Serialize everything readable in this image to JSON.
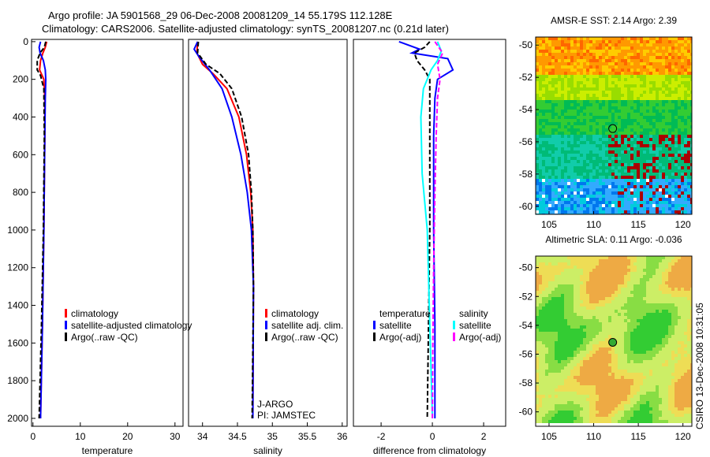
{
  "title_line1": "Argo profile: JA 5901568_29 06-Dec-2008 20081209_14 55.179S 112.128E",
  "title_line2": "Climatology: CARS2006. Satellite-adjusted climatology: synTS_20081207.nc (0.21d later)",
  "side_label": "CSIRO 13-Dec-2008 10:31:05",
  "colors": {
    "clim": "#ff0000",
    "sat": "#0000ff",
    "argo": "#000000",
    "cyan": "#00ffff",
    "magenta": "#ff00ff"
  },
  "chart_data": [
    {
      "type": "line",
      "xlabel": "temperature",
      "xlim": [
        -0.3,
        31.7
      ],
      "ylim": [
        -12,
        2042
      ],
      "xticks": [
        0,
        10,
        20,
        30
      ],
      "yticks": [
        0,
        200,
        400,
        600,
        800,
        1000,
        1200,
        1400,
        1600,
        1800,
        2000
      ],
      "legend": [
        "climatology",
        "satellite-adjusted climatology",
        "Argo(..raw -QC)"
      ],
      "series": [
        {
          "name": "climatology",
          "color": "#ff0000",
          "dash": false,
          "depth": [
            0,
            30,
            60,
            100,
            150,
            200,
            300,
            500,
            1000,
            1500,
            2000
          ],
          "values": [
            2.9,
            2.6,
            2.1,
            1.6,
            1.4,
            2.3,
            2.5,
            2.5,
            2.3,
            2.0,
            1.6
          ]
        },
        {
          "name": "satellite-adjusted climatology",
          "color": "#0000ff",
          "dash": false,
          "depth": [
            0,
            30,
            60,
            100,
            150,
            200,
            300,
            500,
            1000,
            1500,
            2000
          ],
          "values": [
            1.6,
            1.3,
            1.5,
            2.2,
            2.6,
            2.7,
            2.6,
            2.5,
            2.3,
            2.0,
            1.6
          ]
        },
        {
          "name": "Argo",
          "color": "#000000",
          "dash": true,
          "depth": [
            0,
            30,
            60,
            100,
            150,
            180,
            250,
            500,
            1000,
            1500,
            2000
          ],
          "values": [
            2.7,
            2.4,
            1.5,
            0.9,
            0.9,
            1.6,
            2.3,
            2.4,
            2.2,
            1.8,
            1.3
          ]
        }
      ]
    },
    {
      "type": "line",
      "xlabel": "salinity",
      "xlim": [
        33.8,
        36.07
      ],
      "ylim": [
        -12,
        2042
      ],
      "xticks": [
        34,
        34.5,
        35,
        35.5,
        36
      ],
      "yticks": [],
      "legend": [
        "climatology",
        "satellite adj. clim.",
        "Argo(..raw -QC)"
      ],
      "annotation": [
        "J-ARGO",
        "PI: JAMSTEC"
      ],
      "series": [
        {
          "name": "climatology",
          "color": "#ff0000",
          "dash": false,
          "depth": [
            0,
            60,
            120,
            170,
            250,
            400,
            600,
            800,
            1000,
            1300,
            2000
          ],
          "values": [
            33.93,
            33.92,
            34.0,
            34.15,
            34.35,
            34.52,
            34.63,
            34.69,
            34.72,
            34.73,
            34.72
          ]
        },
        {
          "name": "satellite adj. clim.",
          "color": "#0000ff",
          "dash": false,
          "depth": [
            0,
            40,
            80,
            150,
            250,
            400,
            600,
            800,
            1000,
            1300,
            2000
          ],
          "values": [
            33.93,
            33.88,
            33.95,
            34.1,
            34.28,
            34.42,
            34.55,
            34.64,
            34.7,
            34.73,
            34.72
          ]
        },
        {
          "name": "Argo",
          "color": "#000000",
          "dash": true,
          "depth": [
            0,
            60,
            120,
            170,
            250,
            400,
            600,
            800,
            1000,
            1300,
            2000
          ],
          "values": [
            33.94,
            33.93,
            34.05,
            34.25,
            34.42,
            34.56,
            34.66,
            34.7,
            34.72,
            34.73,
            34.71
          ]
        }
      ]
    },
    {
      "type": "line",
      "xlabel": "difference from climatology",
      "xlim": [
        -3.08,
        2.86
      ],
      "ylim": [
        -12,
        2042
      ],
      "xticks": [
        -2,
        0,
        2
      ],
      "yticks": [],
      "legend_temperature": {
        "title": "temperature",
        "items": [
          "satellite",
          "Argo(-adj)"
        ]
      },
      "legend_salinity": {
        "title": "salinity",
        "items": [
          "satellite",
          "Argo(-adj)"
        ]
      },
      "series": [
        {
          "name": "temperature satellite",
          "color": "#0000ff",
          "dash": false,
          "depth": [
            0,
            40,
            60,
            90,
            150,
            200,
            300,
            500,
            1000,
            1500,
            2000
          ],
          "values": [
            -1.3,
            -0.5,
            -0.8,
            0.6,
            0.8,
            0.2,
            0.1,
            0.05,
            0.05,
            0.1,
            0.1
          ]
        },
        {
          "name": "temperature Argo(-adj)",
          "color": "#000000",
          "dash": true,
          "depth": [
            0,
            30,
            60,
            100,
            150,
            200,
            300,
            500,
            1000,
            1500,
            2000
          ],
          "values": [
            -0.1,
            -0.3,
            -0.7,
            -0.6,
            -0.3,
            -0.1,
            -0.1,
            -0.1,
            -0.1,
            -0.15,
            -0.2
          ]
        },
        {
          "name": "salinity satellite",
          "color": "#00ffff",
          "dash": false,
          "depth": [
            0,
            50,
            100,
            150,
            250,
            400,
            700,
            1000,
            1500,
            2000
          ],
          "values": [
            0.2,
            0.35,
            0.2,
            -0.05,
            -0.35,
            -0.45,
            -0.4,
            -0.2,
            -0.1,
            0.0
          ]
        },
        {
          "name": "salinity Argo(-adj)",
          "color": "#ff00ff",
          "dash": true,
          "depth": [
            0,
            60,
            120,
            200,
            300,
            500,
            800,
            1200,
            1600,
            2000
          ],
          "values": [
            0.1,
            0.4,
            0.2,
            0.3,
            0.2,
            0.15,
            0.1,
            0.05,
            0.02,
            0.0
          ]
        }
      ]
    }
  ],
  "maps": [
    {
      "title": "AMSR-E SST: 2.14 Argo: 2.39",
      "xticks": [
        105,
        110,
        115,
        120
      ],
      "yticks": [
        -50,
        -52,
        -54,
        -56,
        -58,
        -60
      ],
      "xlim": [
        103.5,
        121
      ],
      "ylim": [
        -60.5,
        -49.5
      ],
      "marker": [
        112.13,
        -55.18
      ],
      "kind": "sst"
    },
    {
      "title": "Altimetric SLA: 0.11 Argo: -0.036",
      "xticks": [
        105,
        110,
        115,
        120
      ],
      "yticks": [
        -50,
        -52,
        -54,
        -56,
        -58,
        -60
      ],
      "xlim": [
        103.5,
        121
      ],
      "ylim": [
        -61,
        -49.2
      ],
      "marker": [
        112.13,
        -55.18
      ],
      "kind": "sla"
    }
  ]
}
